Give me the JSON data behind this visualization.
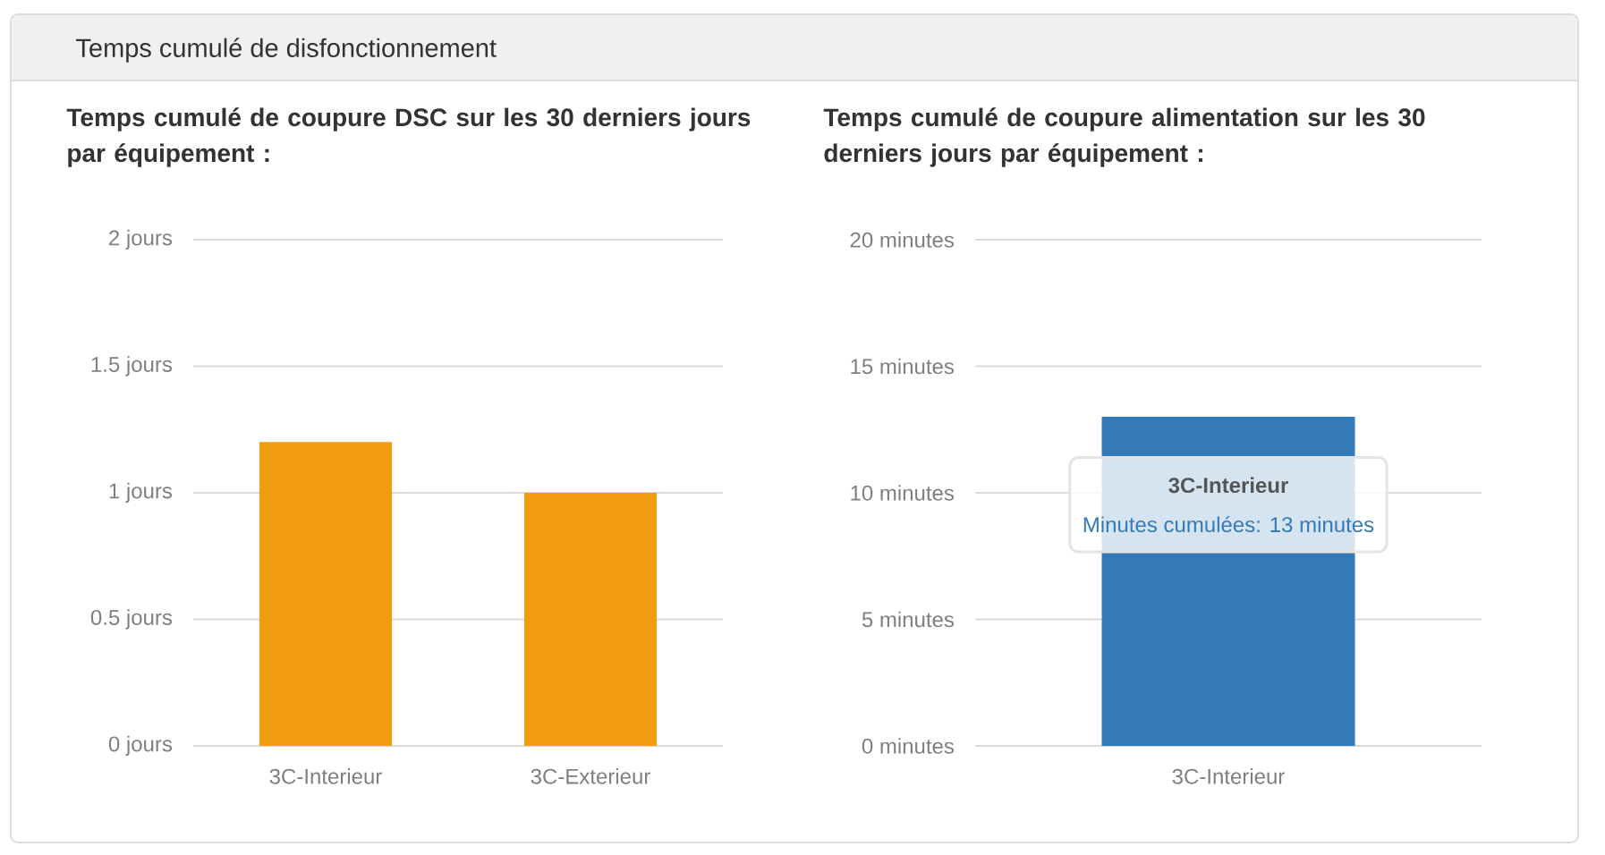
{
  "chart_data": [
    {
      "type": "other",
      "title": "Temps cumulé de disfonctionnement"
    },
    {
      "type": "bar",
      "title": "Temps cumulé de coupure DSC sur les 30 derniers jours par équipement :",
      "categories": [
        "3C-Interieur",
        "3C-Exterieur"
      ],
      "values": [
        1.2,
        1
      ],
      "color": "#f39c12",
      "ylim": [
        0,
        2
      ],
      "yticks": [
        {
          "value": 0,
          "label": "0 jours"
        },
        {
          "value": 0.5,
          "label": "0.5 jours"
        },
        {
          "value": 1,
          "label": "1 jours"
        },
        {
          "value": 1.5,
          "label": "1.5 jours"
        },
        {
          "value": 2,
          "label": "2 jours"
        }
      ],
      "grid": "y"
    },
    {
      "type": "bar",
      "title": "Temps cumulé de coupure alimentation sur les 30 derniers jours par équipement :",
      "categories": [
        "3C-Interieur"
      ],
      "values": [
        13
      ],
      "color": "#337ab7",
      "ylim": [
        0,
        20
      ],
      "yticks": [
        {
          "value": 0,
          "label": "0 minutes"
        },
        {
          "value": 5,
          "label": "5 minutes"
        },
        {
          "value": 10,
          "label": "10 minutes"
        },
        {
          "value": 15,
          "label": "15 minutes"
        },
        {
          "value": 20,
          "label": "20 minutes"
        }
      ],
      "grid": "y",
      "annotations": [
        "3C-Interieur",
        "Minutes cumulées: 13 minutes"
      ]
    }
  ]
}
